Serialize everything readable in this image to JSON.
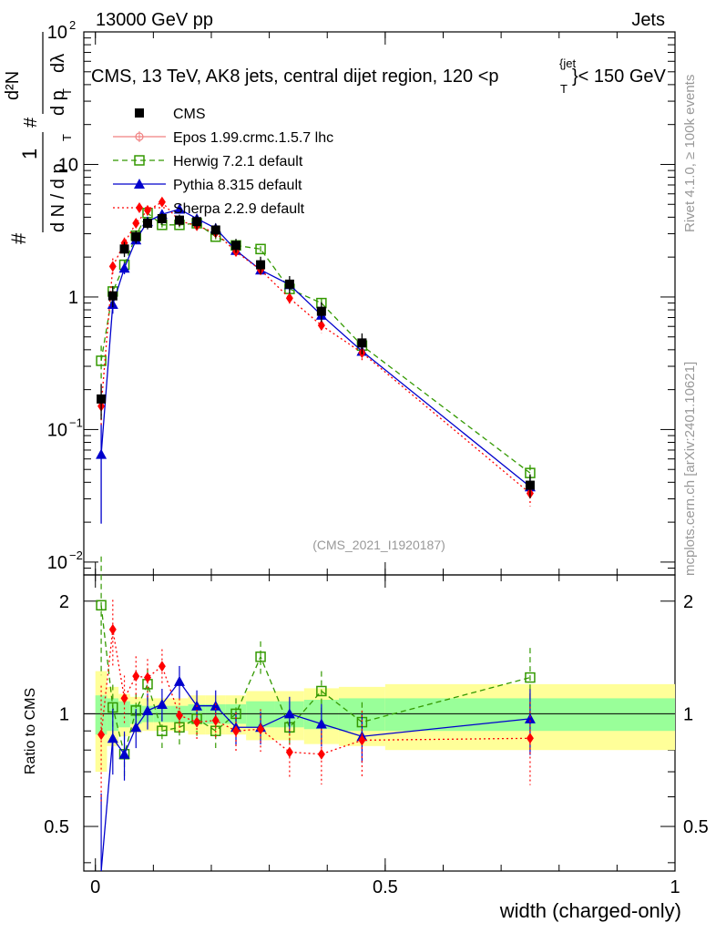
{
  "header": {
    "left": "13000 GeV pp",
    "right": "Jets"
  },
  "side_text": {
    "rivet": "Rivet 4.1.0, ≥ 100k events",
    "mcplots": "mcplots.cern.ch [arXiv:2401.10621]"
  },
  "main_title": "CMS, 13 TeV, AK8 jets, central dijet region, 120 < p_T^{jet} < 150 GeV",
  "title_parts": {
    "main": "CMS, 13 TeV, AK8 jets, central dijet region, 120 <p",
    "sup": "{jet",
    "sub": "T",
    "tail": "}< 150 GeV"
  },
  "ylabel_top": "1/N dN/dpT d²N/dpT dλ",
  "ylabel_parts": {
    "num1": "1",
    "den1": "d N / d p",
    "sub1": "T",
    "num2": "d²N",
    "den2": "d p",
    "sub2": "T",
    "dl": "dλ",
    "hash": "#"
  },
  "ylabel_bottom": "Ratio to CMS",
  "xlabel": "width (charged-only)",
  "analysis_tag": "(CMS_2021_I1920187)",
  "colors": {
    "cms": "#000000",
    "epos": "#f08080",
    "herwig": "#339900",
    "pythia": "#0000cc",
    "sherpa": "#ff0000",
    "band_inner": "#99ff99",
    "band_outer": "#ffff99"
  },
  "legend": [
    {
      "label": "CMS",
      "marker": "square-filled"
    },
    {
      "label": "Epos 1.99.crmc.1.5.7 lhc",
      "marker": "cross-circle"
    },
    {
      "label": "Herwig 7.2.1 default",
      "marker": "square-open"
    },
    {
      "label": "Pythia 8.315 default",
      "marker": "triangle"
    },
    {
      "label": "Sherpa 2.2.9 default",
      "marker": "diamond"
    }
  ],
  "chart_data": {
    "type": "line",
    "title": "CMS, 13 TeV, AK8 jets, central dijet region, 120 < p_T^{jet} < 150 GeV",
    "xlabel": "width (charged-only)",
    "ylabel": "1/N dN/dpT d²N/dpT dλ",
    "xlim": [
      -0.02,
      1.0
    ],
    "ylim": [
      0.008,
      100
    ],
    "yscale": "log",
    "x_ticks": [
      "0",
      "0.5",
      "1"
    ],
    "y_ticks": [
      "10^-2",
      "10^-1",
      "1",
      "10",
      "10^2"
    ],
    "ratio_ylim": [
      0.38,
      2.35
    ],
    "ratio_ticks": [
      "0.5",
      "1",
      "2"
    ],
    "bin_edges": [
      0.0,
      0.02,
      0.04,
      0.06,
      0.08,
      0.1,
      0.13,
      0.16,
      0.19,
      0.225,
      0.26,
      0.31,
      0.36,
      0.42,
      0.5,
      1.0
    ],
    "x": [
      0.01,
      0.03,
      0.05,
      0.07,
      0.09,
      0.115,
      0.145,
      0.175,
      0.2075,
      0.2425,
      0.285,
      0.335,
      0.39,
      0.46,
      0.75
    ],
    "cms": {
      "values": [
        0.17,
        1.02,
        2.3,
        2.85,
        3.6,
        3.9,
        3.8,
        3.7,
        3.2,
        2.45,
        1.75,
        1.25,
        0.78,
        0.45,
        0.038
      ],
      "rel_err_inner": [
        0.12,
        0.1,
        0.08,
        0.06,
        0.05,
        0.05,
        0.05,
        0.06,
        0.06,
        0.06,
        0.08,
        0.08,
        0.09,
        0.1,
        0.1
      ],
      "rel_err_outer": [
        0.3,
        0.18,
        0.13,
        0.11,
        0.1,
        0.1,
        0.1,
        0.12,
        0.12,
        0.12,
        0.15,
        0.15,
        0.17,
        0.18,
        0.2
      ]
    },
    "series": [
      {
        "name": "Herwig 7.2.1 default",
        "style": "dashed",
        "values": [
          0.33,
          1.1,
          1.75,
          2.9,
          4.3,
          3.5,
          3.5,
          3.6,
          2.85,
          2.45,
          2.3,
          1.15,
          0.9,
          0.43,
          0.047
        ],
        "rel_err": [
          0.3,
          0.1,
          0.08,
          0.06,
          0.05,
          0.05,
          0.05,
          0.05,
          0.05,
          0.05,
          0.05,
          0.06,
          0.08,
          0.08,
          0.15
        ]
      },
      {
        "name": "Pythia 8.315 default",
        "style": "solid",
        "values": [
          0.065,
          0.88,
          1.65,
          2.7,
          3.7,
          4.2,
          4.6,
          3.9,
          3.3,
          2.25,
          1.6,
          1.24,
          0.73,
          0.39,
          0.037
        ],
        "rel_err": [
          0.7,
          0.15,
          0.1,
          0.07,
          0.06,
          0.05,
          0.05,
          0.05,
          0.05,
          0.05,
          0.05,
          0.06,
          0.08,
          0.1,
          0.15
        ]
      },
      {
        "name": "Sherpa 2.2.9 default",
        "style": "dotted",
        "values": [
          0.15,
          1.7,
          2.55,
          3.6,
          4.5,
          5.2,
          3.75,
          3.45,
          3.05,
          2.2,
          1.6,
          0.98,
          0.61,
          0.38,
          0.033
        ],
        "rel_err": [
          0.3,
          0.15,
          0.1,
          0.08,
          0.07,
          0.06,
          0.06,
          0.06,
          0.06,
          0.07,
          0.08,
          0.1,
          0.12,
          0.15,
          0.2
        ]
      }
    ],
    "ratios": [
      {
        "name": "Herwig 7.2.1 default",
        "values": [
          1.95,
          1.04,
          0.78,
          1.02,
          1.2,
          0.9,
          0.92,
          0.97,
          0.9,
          1.0,
          1.42,
          0.92,
          1.15,
          0.95,
          1.25
        ]
      },
      {
        "name": "Pythia 8.315 default",
        "values": [
          0.35,
          0.86,
          0.78,
          0.92,
          1.02,
          1.06,
          1.22,
          1.05,
          1.05,
          0.92,
          0.92,
          1.0,
          0.94,
          0.87,
          0.97
        ]
      },
      {
        "name": "Sherpa 2.2.9 default",
        "values": [
          0.88,
          1.68,
          1.1,
          1.26,
          1.25,
          1.34,
          0.99,
          0.95,
          0.96,
          0.9,
          0.91,
          0.79,
          0.78,
          0.85,
          0.86
        ]
      }
    ]
  }
}
